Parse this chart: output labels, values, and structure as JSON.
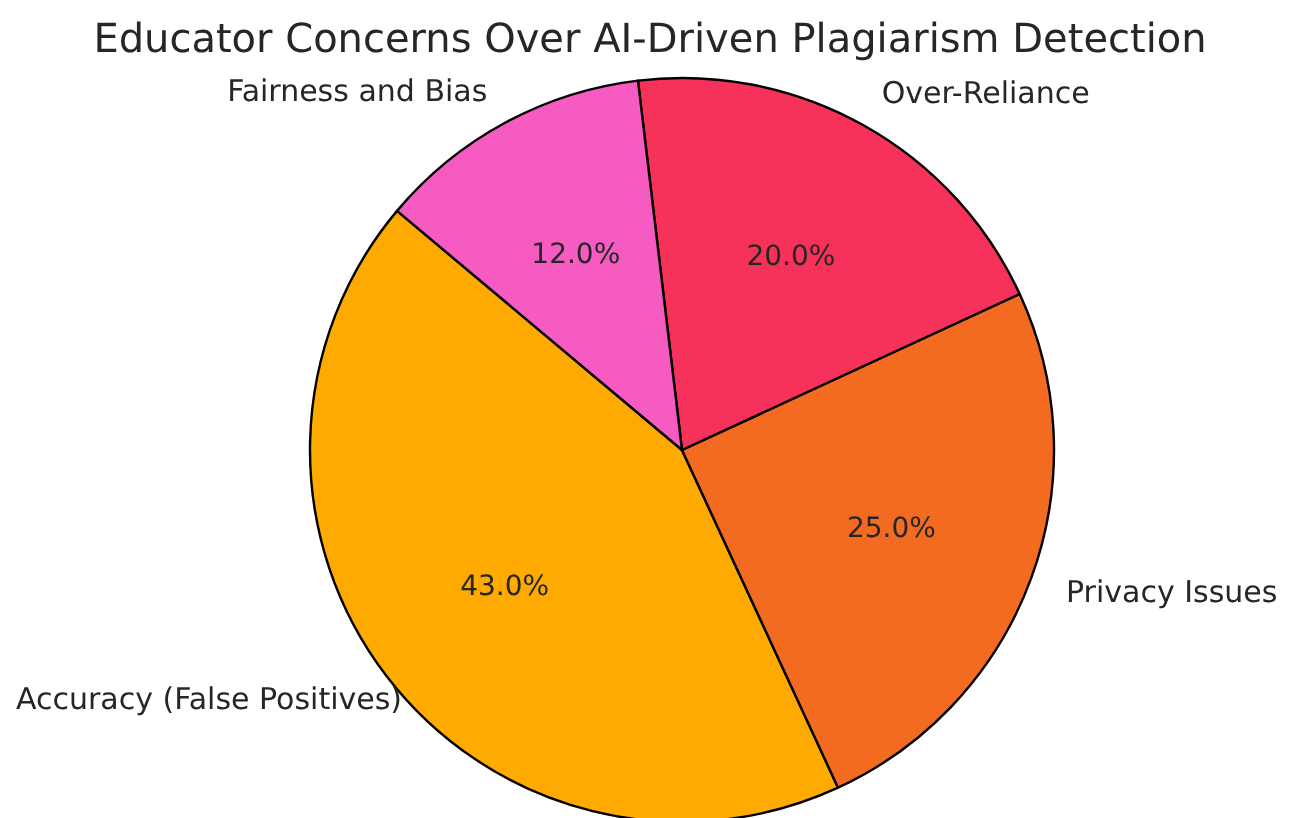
{
  "chart_data": {
    "type": "pie",
    "title": "Educator Concerns Over AI-Driven Plagiarism Detection",
    "categories": [
      "Accuracy (False Positives)",
      "Privacy Issues",
      "Over-Reliance",
      "Fairness and Bias"
    ],
    "values": [
      43,
      25,
      20,
      12
    ],
    "colors": [
      "#ffaa00",
      "#f26b21",
      "#f7325a",
      "#f55bc1"
    ],
    "value_labels": [
      "43.0%",
      "25.0%",
      "20.0%",
      "12.0%"
    ]
  }
}
